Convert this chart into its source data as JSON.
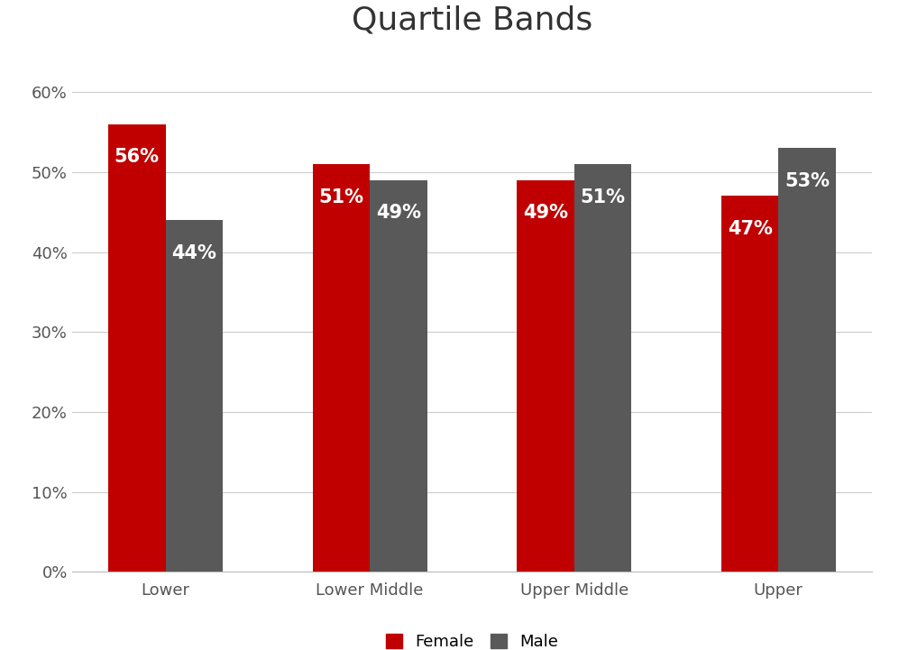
{
  "title": "Quartile Bands",
  "categories": [
    "Lower",
    "Lower Middle",
    "Upper Middle",
    "Upper"
  ],
  "female_values": [
    0.56,
    0.51,
    0.49,
    0.47
  ],
  "male_values": [
    0.44,
    0.49,
    0.51,
    0.53
  ],
  "female_labels": [
    "56%",
    "51%",
    "49%",
    "47%"
  ],
  "male_labels": [
    "44%",
    "49%",
    "51%",
    "53%"
  ],
  "female_color": "#C00000",
  "male_color": "#595959",
  "background_color": "#FFFFFF",
  "title_fontsize": 26,
  "tick_fontsize": 13,
  "legend_fontsize": 13,
  "bar_label_fontsize": 15,
  "ylim": [
    0,
    0.65
  ],
  "yticks": [
    0.0,
    0.1,
    0.2,
    0.3,
    0.4,
    0.5,
    0.6
  ],
  "ytick_labels": [
    "0%",
    "10%",
    "20%",
    "30%",
    "40%",
    "50%",
    "60%"
  ],
  "bar_width": 0.28,
  "legend_labels": [
    "Female",
    "Male"
  ]
}
